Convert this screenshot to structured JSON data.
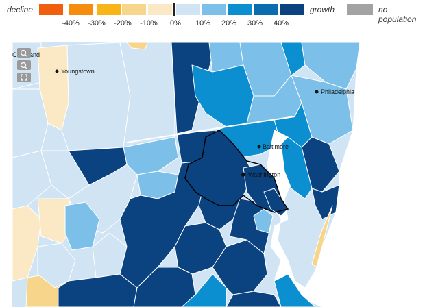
{
  "legend": {
    "decline_label": "decline",
    "growth_label": "growth",
    "no_population_label": "no population",
    "ticks": [
      "-40%",
      "-30%",
      "-20%",
      "-10%",
      "0%",
      "10%",
      "20%",
      "30%",
      "40%"
    ],
    "colors": [
      "#f05f0d",
      "#f58c0d",
      "#f9b517",
      "#f7d58a",
      "#fbe9c6",
      "#d0e4f4",
      "#7cc0ea",
      "#0c8fd0",
      "#0b6db0",
      "#0b4280"
    ],
    "no_population_color": "#a3a3a3"
  },
  "map_controls": {
    "zoom_in": "zoom-in",
    "zoom_out": "zoom-out",
    "reset": "reset"
  },
  "cities": {
    "cleveland": "Cleveland",
    "youngstown": "Youngstown",
    "philadelphia": "Philadelphia",
    "baltimore": "Baltimore",
    "washington": "Washington"
  }
}
